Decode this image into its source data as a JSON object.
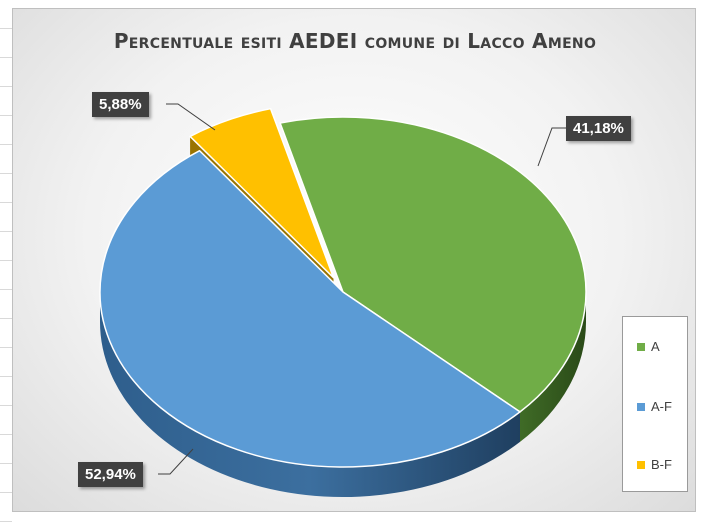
{
  "chart_data": {
    "type": "pie",
    "title": "Percentuale esiti AEDEI comune di Lacco Ameno",
    "categories": [
      "A",
      "A-F",
      "B-F"
    ],
    "values": [
      41.18,
      52.94,
      5.88
    ],
    "data_labels": [
      "41,18%",
      "52,94%",
      "5,88%"
    ],
    "colors": [
      "#70ad47",
      "#5b9bd5",
      "#ffc000"
    ],
    "legend_position": "right",
    "exploded": "B-F",
    "style": "3d"
  }
}
